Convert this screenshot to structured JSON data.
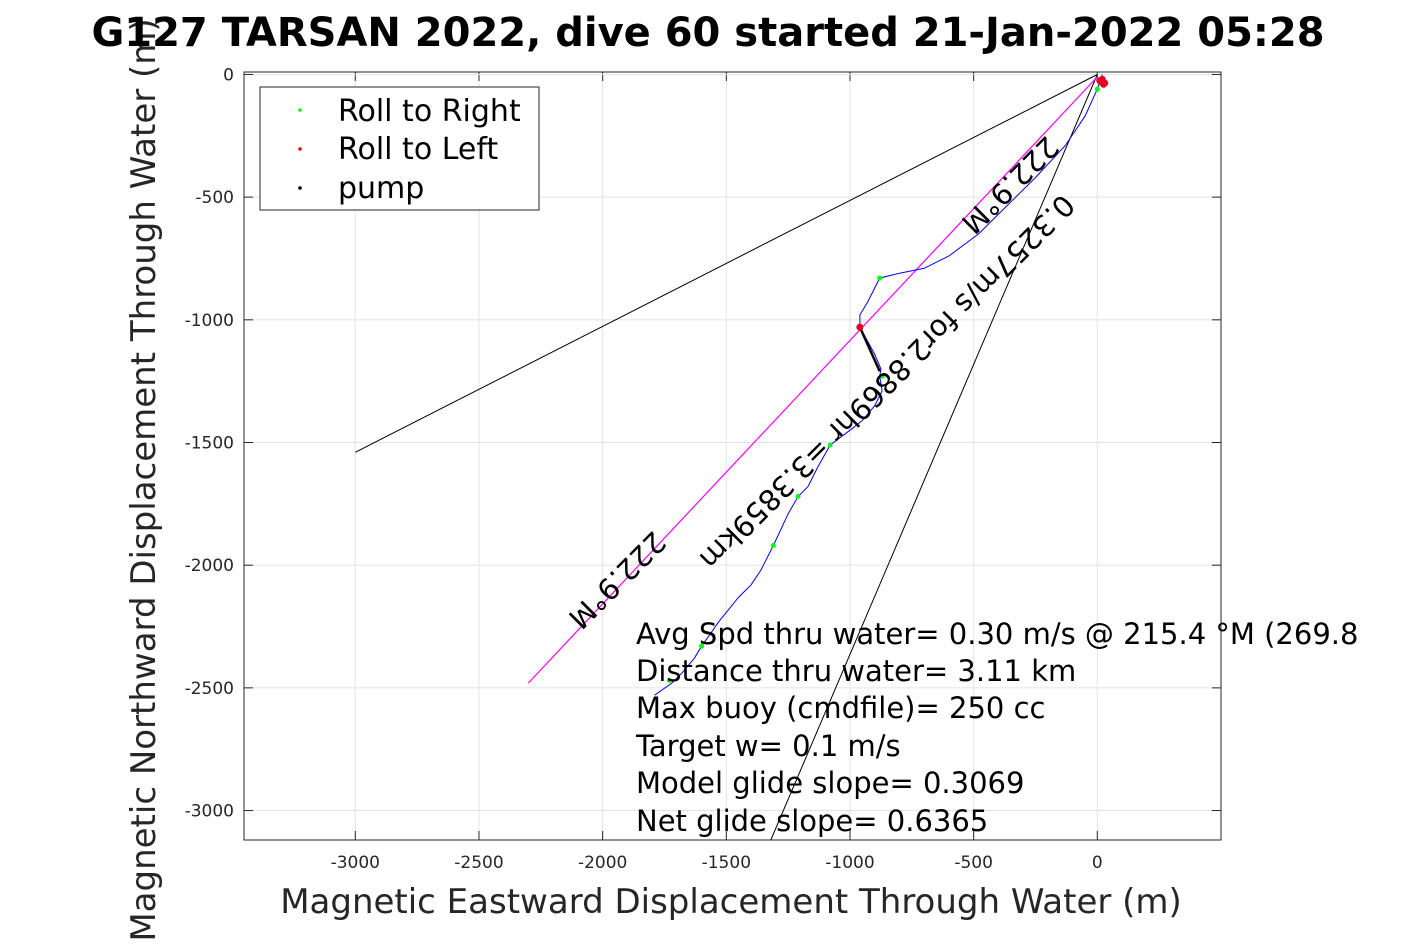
{
  "chart_data": {
    "type": "line",
    "title": "G127 TARSAN 2022, dive 60 started 21-Jan-2022 05:28",
    "xlabel": "Magnetic Eastward Displacement Through Water (m)",
    "ylabel": "Magnetic Northward Displacement Through Water (m)",
    "xlim": [
      -3450,
      500
    ],
    "ylim": [
      -3120,
      10
    ],
    "xticks": [
      -3000,
      -2500,
      -2000,
      -1500,
      -1000,
      -500,
      0
    ],
    "yticks": [
      0,
      -500,
      -1000,
      -1500,
      -2000,
      -2500,
      -3000
    ],
    "grid": true,
    "legend": {
      "placement": "top-left",
      "entries": [
        {
          "label": "Roll to Right",
          "color": "#00ff00"
        },
        {
          "label": "Roll to Left",
          "color": "#ff0000"
        },
        {
          "label": "pump",
          "color": "#000000"
        }
      ]
    },
    "series": [
      {
        "name": "track",
        "color": "#0000ff",
        "x": [
          20,
          0,
          -50,
          -130,
          -250,
          -380,
          -480,
          -600,
          -700,
          -800,
          -880,
          -905,
          -930,
          -960,
          -960,
          -900,
          -875,
          -880,
          -875,
          -870,
          -900,
          -950,
          -1000,
          -1080,
          -1130,
          -1170,
          -1210,
          -1250,
          -1310,
          -1360,
          -1400,
          -1450,
          -1530,
          -1600,
          -1630,
          -1680,
          -1720,
          -1790
        ],
        "y": [
          0,
          -60,
          -170,
          -290,
          -420,
          -550,
          -650,
          -740,
          -790,
          -810,
          -830,
          -880,
          -930,
          -980,
          -1030,
          -1140,
          -1200,
          -1230,
          -1260,
          -1290,
          -1350,
          -1410,
          -1450,
          -1510,
          -1600,
          -1680,
          -1720,
          -1790,
          -1920,
          -2020,
          -2080,
          -2130,
          -2230,
          -2330,
          -2380,
          -2440,
          -2480,
          -2530
        ]
      },
      {
        "name": "heading-line",
        "color": "#ff00ff",
        "x": [
          0,
          -2300
        ],
        "y": [
          -10,
          -2480
        ]
      }
    ],
    "roll_right_points": {
      "x": [
        0,
        -880,
        -870,
        -1080,
        -1210,
        -1310,
        -1600,
        -1730
      ],
      "y": [
        -60,
        -830,
        -1230,
        -1510,
        -1720,
        -1920,
        -2330,
        -2470
      ]
    },
    "roll_left_points": {
      "x": [
        20,
        15,
        25,
        10,
        30,
        -960
      ],
      "y": [
        -20,
        -30,
        -40,
        -25,
        -35,
        -1030
      ]
    },
    "pump_segment": {
      "x": [
        -960,
        -880
      ],
      "y": [
        -1030,
        -1210
      ]
    },
    "cone_lines": [
      {
        "x": [
          0,
          -3000
        ],
        "y": [
          0,
          -1540
        ]
      },
      {
        "x": [
          0,
          -1320
        ],
        "y": [
          0,
          -3120
        ]
      }
    ],
    "rotated_annotations": [
      "222.9°M",
      "0.3257m/s for2.8869hr =3.3859km",
      "222.9°M"
    ],
    "annotations": [
      "Avg Spd thru water=  0.30 m/s @ 215.4 °M (269.8",
      "Distance thru water=  3.11 km",
      "Max buoy (cmdfile)= 250 cc",
      "Target w= 0.1 m/s",
      "Model glide slope= 0.3069",
      "Net glide slope= 0.6365"
    ]
  }
}
